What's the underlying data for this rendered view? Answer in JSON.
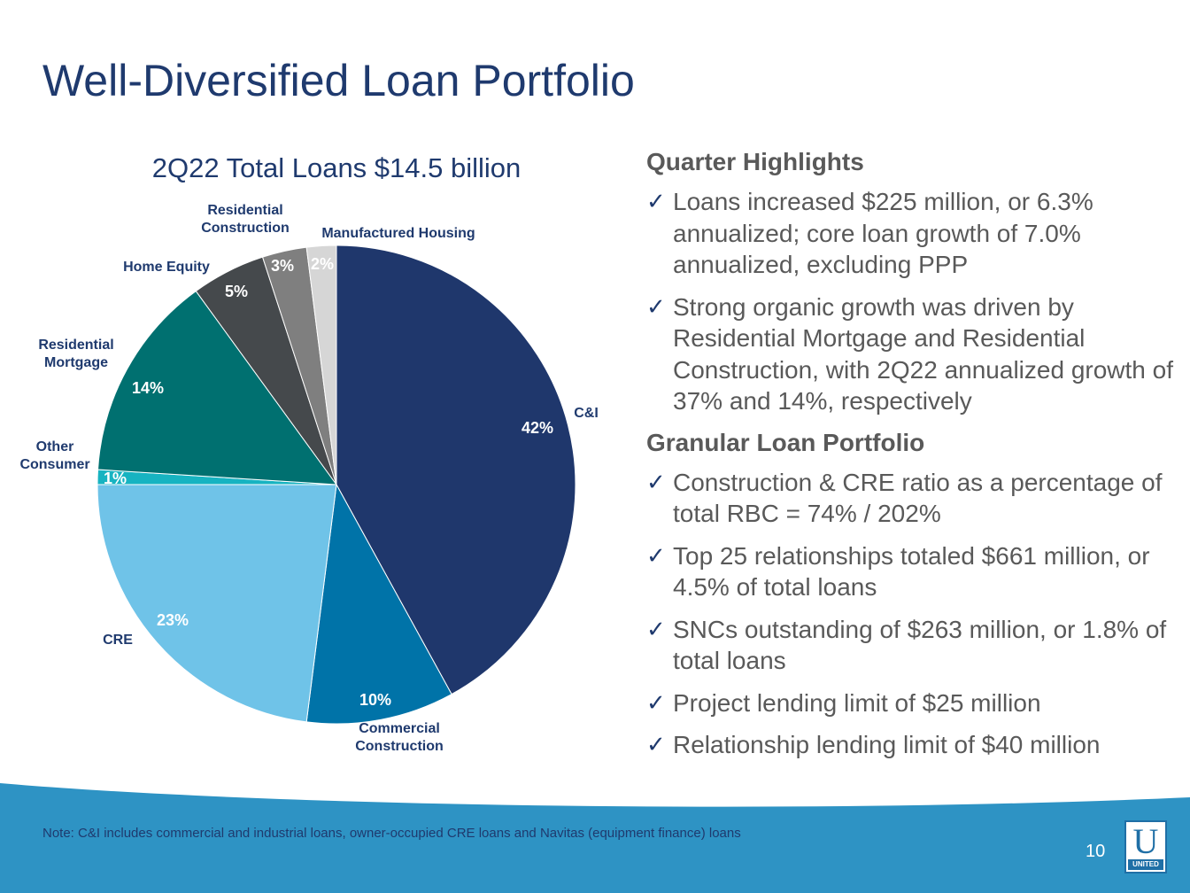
{
  "title": "Well-Diversified Loan Portfolio",
  "chart_data": {
    "type": "pie",
    "title": "2Q22 Total Loans $14.5 billion",
    "categories": [
      "C&I",
      "Commercial Construction",
      "CRE",
      "Other Consumer",
      "Residential Mortgage",
      "Home Equity",
      "Residential Construction",
      "Manufactured Housing"
    ],
    "category_lines": [
      [
        "C&I"
      ],
      [
        "Commercial",
        "Construction"
      ],
      [
        "CRE"
      ],
      [
        "Other",
        "Consumer"
      ],
      [
        "Residential",
        "Mortgage"
      ],
      [
        "Home Equity"
      ],
      [
        "Residential",
        "Construction"
      ],
      [
        "Manufactured Housing"
      ]
    ],
    "values": [
      42,
      10,
      23,
      1,
      14,
      5,
      3,
      2
    ],
    "value_labels": [
      "42%",
      "10%",
      "23%",
      "1%",
      "14%",
      "5%",
      "3%",
      "2%"
    ],
    "colors": [
      "#1f376c",
      "#0073a8",
      "#6fc3e8",
      "#17b3c1",
      "#007070",
      "#45494c",
      "#7f7f7f",
      "#d6d6d6"
    ],
    "unit": "%"
  },
  "highlights": [
    {
      "heading": "Quarter Highlights",
      "bullets": [
        "Loans increased $225 million, or 6.3% annualized; core loan growth of 7.0% annualized, excluding PPP",
        "Strong organic growth was driven by Residential Mortgage and Residential Construction, with 2Q22 annualized growth of 37% and 14%, respectively"
      ]
    },
    {
      "heading": "Granular Loan Portfolio",
      "bullets": [
        "Construction & CRE ratio as a percentage of total RBC = 74% / 202%",
        "Top 25 relationships totaled $661 million, or 4.5% of total loans",
        "SNCs outstanding of $263 million, or 1.8% of total loans",
        "Project lending limit of $25 million",
        "Relationship lending limit of $40 million"
      ]
    }
  ],
  "check_glyph": "✓",
  "footer": {
    "note": "Note: C&I includes commercial and industrial loans, owner-occupied CRE loans and Navitas (equipment finance) loans",
    "page_number": "10",
    "logo_letter": "U",
    "logo_word": "UNITED",
    "band_color": "#2e93c4"
  }
}
